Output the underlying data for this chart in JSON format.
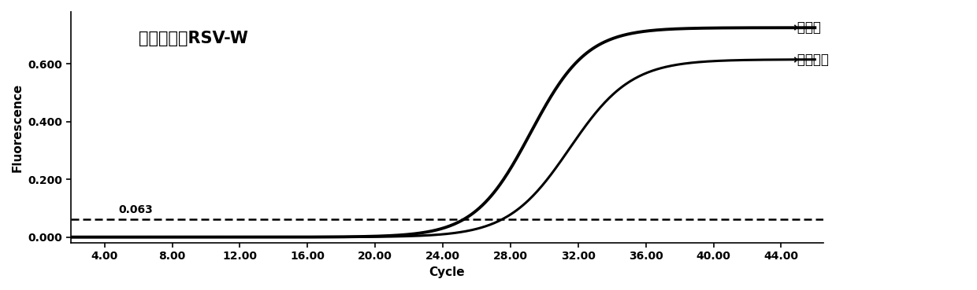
{
  "title": "检测野生型RSV-W",
  "xlabel": "Cycle",
  "ylabel": "Fluorescence",
  "xlim": [
    2,
    46.5
  ],
  "ylim": [
    -0.02,
    0.78
  ],
  "xticks": [
    4.0,
    8.0,
    12.0,
    16.0,
    20.0,
    24.0,
    28.0,
    32.0,
    36.0,
    40.0,
    44.0
  ],
  "yticks": [
    0.0,
    0.2,
    0.4,
    0.6
  ],
  "threshold": 0.063,
  "threshold_label": "0.063",
  "new_method_label": "新方法",
  "trad_method_label": "传统方法",
  "sigmoid_mid_new": 29.2,
  "sigmoid_mid_trad": 31.5,
  "sigmoid_k_new": 0.6,
  "sigmoid_k_trad": 0.55,
  "sigmoid_max_new": 0.725,
  "sigmoid_max_trad": 0.615,
  "background_color": "#ffffff",
  "line_color": "#000000",
  "threshold_color": "#000000",
  "font_size_title": 15,
  "font_size_label": 11,
  "font_size_tick": 10,
  "font_size_annotation": 12
}
